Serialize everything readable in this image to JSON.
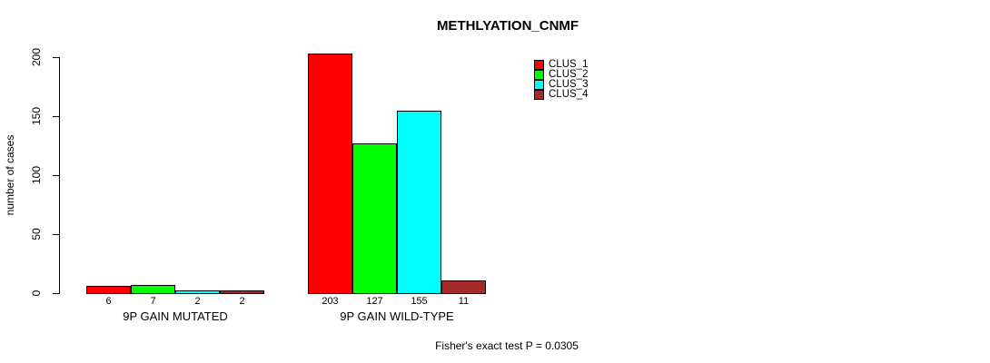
{
  "title": "METHLYATION_CNMF",
  "y_axis": {
    "label": "number of cases",
    "ticks": [
      0,
      50,
      100,
      150,
      200
    ]
  },
  "footer": "Fisher's exact test P = 0.0305",
  "legend": {
    "items": [
      {
        "name": "CLUS_1",
        "color": "#FF0000"
      },
      {
        "name": "CLUS_2",
        "color": "#00FF00"
      },
      {
        "name": "CLUS_3",
        "color": "#00FFFF"
      },
      {
        "name": "CLUS_4",
        "color": "#A52A2A"
      }
    ]
  },
  "chart_data": {
    "type": "bar",
    "title": "METHLYATION_CNMF",
    "xlabel": "",
    "ylabel": "number of cases",
    "ylim": [
      0,
      203
    ],
    "yticks": [
      0,
      50,
      100,
      150,
      200
    ],
    "grid": false,
    "legend_position": "top-right",
    "categories": [
      "9P GAIN MUTATED",
      "9P GAIN WILD-TYPE"
    ],
    "series": [
      {
        "name": "CLUS_1",
        "color": "#FF0000",
        "values": [
          6,
          203
        ]
      },
      {
        "name": "CLUS_2",
        "color": "#00FF00",
        "values": [
          7,
          127
        ]
      },
      {
        "name": "CLUS_3",
        "color": "#00FFFF",
        "values": [
          2,
          155
        ]
      },
      {
        "name": "CLUS_4",
        "color": "#A52A2A",
        "values": [
          2,
          11
        ]
      }
    ],
    "bar_value_labels": [
      [
        "6",
        "7",
        "2",
        "2"
      ],
      [
        "203",
        "127",
        "155",
        "11"
      ]
    ],
    "annotation": "Fisher's exact test P = 0.0305"
  }
}
